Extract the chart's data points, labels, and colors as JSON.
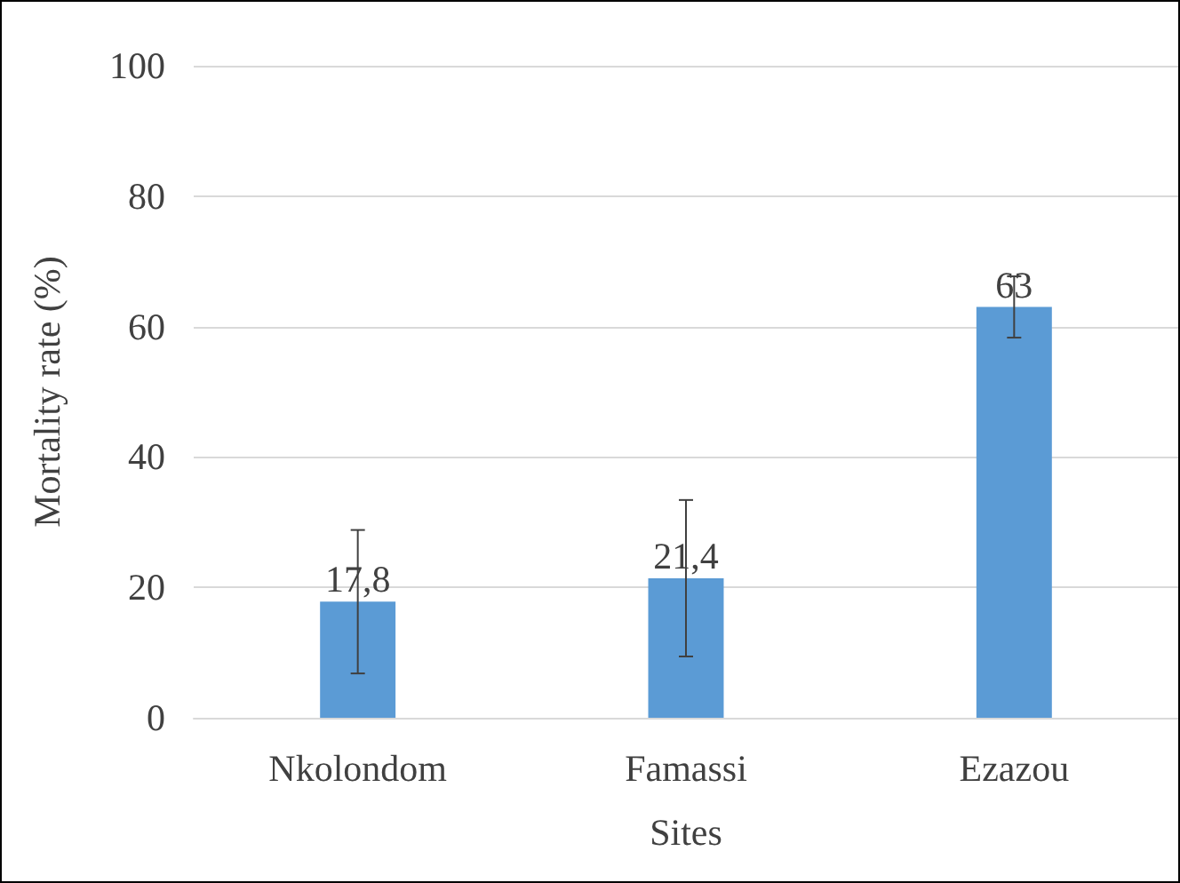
{
  "chart_data": {
    "type": "bar",
    "xlabel": "Sites",
    "ylabel": "Mortality rate (%)",
    "categories": [
      "Nkolondom",
      "Famassi",
      "Ezazou"
    ],
    "values": [
      17.8,
      21.4,
      63
    ],
    "color": "#5b9bd5",
    "value_labels": [
      "17,8",
      "21,4",
      "63"
    ],
    "errors": [
      11,
      12,
      4.7
    ],
    "ylim": [
      0,
      100
    ],
    "yticks": [
      0,
      20,
      40,
      60,
      80,
      100
    ],
    "grid": "y"
  }
}
